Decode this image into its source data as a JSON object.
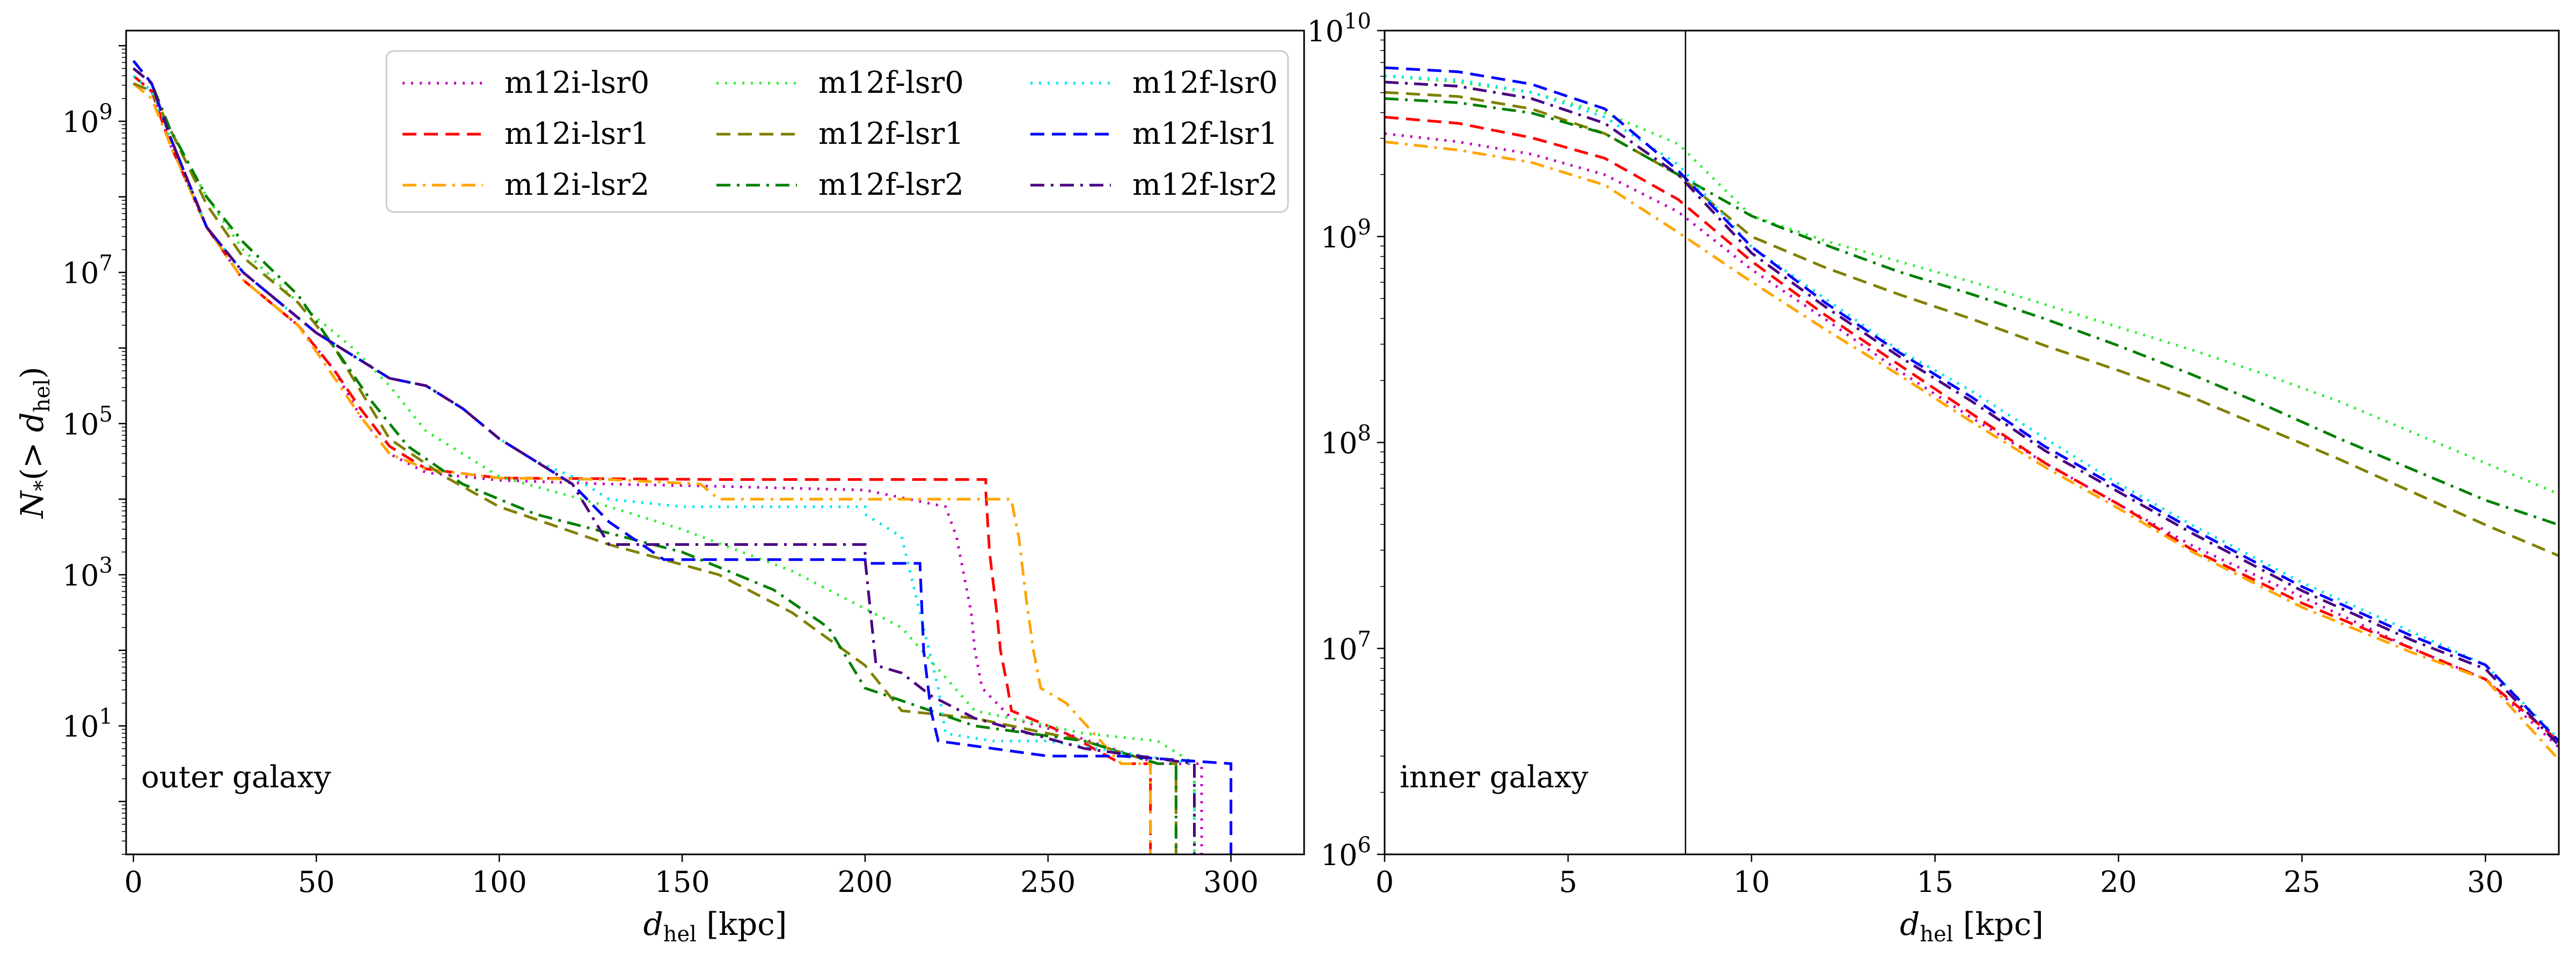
{
  "chart_data": [
    {
      "type": "line",
      "panel": "left",
      "annotation": "outer galaxy",
      "xlabel": "d_hel [kpc]",
      "ylabel": "N_*(> d_hel)",
      "xlim": [
        -2,
        320
      ],
      "ylim_log10": [
        -0.7,
        10.2
      ],
      "xscale": "linear",
      "yscale": "log",
      "xticks": [
        0,
        50,
        100,
        150,
        200,
        250,
        300
      ],
      "yticks_log10": [
        1,
        3,
        5,
        7,
        9
      ],
      "legend_placement": "top-right (3 columns)",
      "series": [
        {
          "name": "m12i-lsr0",
          "color": "#bf00bf",
          "dash": "dot",
          "x": [
            0,
            5,
            10,
            20,
            30,
            45,
            55,
            62,
            70,
            80,
            100,
            130,
            160,
            200,
            222,
            225,
            227,
            229,
            230,
            232,
            240,
            255,
            280,
            292
          ],
          "y": [
            9.5,
            9.4,
            8.7,
            7.6,
            6.9,
            6.3,
            5.7,
            5.1,
            4.6,
            4.35,
            4.25,
            4.2,
            4.17,
            4.12,
            3.9,
            3.5,
            3.0,
            2.5,
            2.0,
            1.5,
            1.1,
            0.9,
            0.5,
            0.5
          ]
        },
        {
          "name": "m12i-lsr1",
          "color": "#ff0000",
          "dash": "dash",
          "x": [
            0,
            5,
            10,
            20,
            30,
            45,
            55,
            62,
            70,
            80,
            100,
            130,
            160,
            233,
            234,
            236,
            237,
            239,
            240,
            255,
            270,
            278
          ],
          "y": [
            9.6,
            9.4,
            8.7,
            7.6,
            6.9,
            6.3,
            5.7,
            5.2,
            4.7,
            4.4,
            4.28,
            4.27,
            4.26,
            4.1,
            3.3,
            2.5,
            2.0,
            1.5,
            1.2,
            0.9,
            0.5,
            0.5
          ]
        },
        {
          "name": "m12i-lsr2",
          "color": "#ffa500",
          "dash": "dashdot",
          "x": [
            0,
            5,
            10,
            20,
            30,
            45,
            55,
            62,
            70,
            80,
            100,
            130,
            155,
            160,
            240,
            242,
            244,
            246,
            248,
            255,
            270,
            278
          ],
          "y": [
            9.5,
            9.3,
            8.7,
            7.6,
            6.9,
            6.3,
            5.6,
            5.1,
            4.6,
            4.4,
            4.28,
            4.26,
            4.2,
            4.0,
            3.98,
            3.5,
            2.7,
            2.0,
            1.5,
            1.3,
            0.5,
            0.5
          ]
        },
        {
          "name": "m12f-lsr0",
          "color": "#33ee33",
          "dash": "dot",
          "x": [
            0,
            5,
            10,
            20,
            30,
            45,
            60,
            70,
            80,
            100,
            130,
            150,
            180,
            210,
            230,
            260,
            280,
            290
          ],
          "y": [
            9.6,
            9.4,
            8.9,
            8.0,
            7.3,
            6.6,
            6.0,
            5.5,
            4.9,
            4.3,
            3.9,
            3.6,
            3.05,
            2.3,
            1.2,
            0.9,
            0.8,
            0.5
          ]
        },
        {
          "name": "m12f-lsr1",
          "color": "#808000",
          "dash": "dash",
          "x": [
            0,
            5,
            10,
            20,
            30,
            45,
            55,
            70,
            85,
            100,
            130,
            160,
            180,
            200,
            210,
            230,
            260,
            280,
            285
          ],
          "y": [
            9.5,
            9.4,
            8.9,
            7.9,
            7.2,
            6.6,
            6.0,
            4.8,
            4.3,
            3.9,
            3.4,
            3.0,
            2.5,
            1.8,
            1.2,
            1.1,
            0.8,
            0.5,
            0.5
          ]
        },
        {
          "name": "m12f-lsr2",
          "color": "#008000",
          "dash": "dashdot",
          "x": [
            0,
            5,
            10,
            20,
            30,
            45,
            55,
            65,
            75,
            90,
            110,
            150,
            175,
            190,
            200,
            230,
            260,
            280,
            285
          ],
          "y": [
            9.7,
            9.5,
            8.9,
            8.0,
            7.4,
            6.7,
            6.0,
            5.3,
            4.7,
            4.2,
            3.8,
            3.3,
            2.8,
            2.3,
            1.5,
            1.0,
            0.8,
            0.5,
            0.5
          ]
        },
        {
          "name": "m12f-lsr0",
          "color": "#00e5ee",
          "dash": "dot",
          "x": [
            0,
            5,
            10,
            20,
            30,
            50,
            70,
            80,
            90,
            100,
            110,
            120,
            130,
            150,
            200,
            210,
            215,
            220,
            222,
            235,
            250,
            290
          ],
          "y": [
            9.6,
            9.4,
            8.8,
            7.6,
            7.0,
            6.2,
            5.6,
            5.5,
            5.2,
            4.8,
            4.5,
            4.3,
            4.0,
            3.9,
            3.8,
            3.5,
            2.5,
            1.5,
            0.9,
            0.8,
            0.8,
            0.5
          ]
        },
        {
          "name": "m12f-lsr1",
          "color": "#0000ff",
          "dash": "dash",
          "x": [
            0,
            5,
            10,
            20,
            30,
            50,
            70,
            80,
            90,
            100,
            110,
            120,
            130,
            145,
            200,
            215,
            216,
            218,
            220,
            235,
            250,
            270,
            300
          ],
          "y": [
            9.8,
            9.5,
            8.8,
            7.6,
            7.0,
            6.2,
            5.6,
            5.5,
            5.2,
            4.8,
            4.5,
            4.2,
            3.7,
            3.2,
            3.15,
            3.15,
            2.0,
            1.2,
            0.8,
            0.7,
            0.6,
            0.6,
            0.5
          ]
        },
        {
          "name": "m12f-lsr2",
          "color": "#4b0082",
          "dash": "dashdot",
          "x": [
            0,
            5,
            10,
            20,
            30,
            50,
            70,
            80,
            90,
            100,
            110,
            120,
            130,
            140,
            200,
            203,
            210,
            218,
            230,
            260,
            290
          ],
          "y": [
            9.7,
            9.5,
            8.8,
            7.6,
            7.0,
            6.2,
            5.6,
            5.5,
            5.2,
            4.8,
            4.5,
            4.2,
            3.4,
            3.4,
            3.2,
            1.8,
            1.7,
            1.4,
            1.1,
            0.7,
            0.5
          ]
        }
      ]
    },
    {
      "type": "line",
      "panel": "right",
      "annotation": "inner galaxy",
      "xlabel": "d_hel [kpc]",
      "xlim": [
        0,
        32
      ],
      "ylim_log10": [
        6,
        10
      ],
      "xscale": "linear",
      "yscale": "log",
      "xticks": [
        0,
        5,
        10,
        15,
        20,
        25,
        30
      ],
      "yticks_log10": [
        6,
        7,
        8,
        9,
        10
      ],
      "vline_x": 8.2,
      "series": [
        {
          "name": "m12i-lsr0",
          "color": "#bf00bf",
          "dash": "dot",
          "x": [
            0,
            2,
            4,
            6,
            8,
            10,
            12,
            14,
            16,
            18,
            20,
            22,
            25,
            28,
            30,
            32
          ],
          "y": [
            9.5,
            9.46,
            9.4,
            9.3,
            9.12,
            8.84,
            8.6,
            8.35,
            8.12,
            7.9,
            7.7,
            7.5,
            7.25,
            7.0,
            6.85,
            6.52
          ]
        },
        {
          "name": "m12i-lsr1",
          "color": "#ff0000",
          "dash": "dash",
          "x": [
            0,
            2,
            4,
            6,
            8,
            10,
            12,
            14,
            16,
            18,
            20,
            22,
            25,
            28,
            30,
            32
          ],
          "y": [
            9.58,
            9.55,
            9.48,
            9.38,
            9.18,
            8.88,
            8.62,
            8.38,
            8.14,
            7.9,
            7.7,
            7.48,
            7.22,
            7.0,
            6.85,
            6.55
          ]
        },
        {
          "name": "m12i-lsr2",
          "color": "#ffa500",
          "dash": "dashdot",
          "x": [
            0,
            2,
            4,
            6,
            8,
            10,
            12,
            14,
            16,
            18,
            20,
            22,
            25,
            28,
            30,
            32
          ],
          "y": [
            9.46,
            9.42,
            9.36,
            9.25,
            9.02,
            8.78,
            8.55,
            8.33,
            8.1,
            7.88,
            7.68,
            7.47,
            7.2,
            6.98,
            6.85,
            6.46
          ]
        },
        {
          "name": "m12f-lsr0",
          "color": "#33ee33",
          "dash": "dot",
          "x": [
            0,
            2,
            4,
            6,
            8,
            10,
            12,
            14,
            16,
            18,
            20,
            22,
            24,
            26,
            28,
            30,
            32
          ],
          "y": [
            9.78,
            9.75,
            9.7,
            9.6,
            9.45,
            9.1,
            8.98,
            8.88,
            8.78,
            8.67,
            8.56,
            8.45,
            8.33,
            8.2,
            8.05,
            7.9,
            7.75
          ]
        },
        {
          "name": "m12f-lsr1",
          "color": "#808000",
          "dash": "dash",
          "x": [
            0,
            2,
            4,
            6,
            8,
            10,
            12,
            14,
            16,
            18,
            20,
            22,
            24,
            26,
            28,
            30,
            32
          ],
          "y": [
            9.7,
            9.68,
            9.62,
            9.5,
            9.3,
            9.0,
            8.85,
            8.72,
            8.6,
            8.47,
            8.35,
            8.22,
            8.07,
            7.92,
            7.76,
            7.6,
            7.45
          ]
        },
        {
          "name": "m12f-lsr2",
          "color": "#008000",
          "dash": "dashdot",
          "x": [
            0,
            2,
            4,
            6,
            8,
            10,
            12,
            14,
            16,
            18,
            20,
            22,
            24,
            26,
            28,
            30,
            32
          ],
          "y": [
            9.67,
            9.65,
            9.6,
            9.5,
            9.3,
            9.1,
            8.96,
            8.83,
            8.72,
            8.6,
            8.47,
            8.33,
            8.18,
            8.02,
            7.87,
            7.72,
            7.6
          ]
        },
        {
          "name": "m12f-lsr0",
          "color": "#00e5ee",
          "dash": "dot",
          "x": [
            0,
            2,
            4,
            6,
            8,
            10,
            12,
            14,
            16,
            18,
            20,
            22,
            25,
            28,
            30,
            32
          ],
          "y": [
            9.78,
            9.76,
            9.7,
            9.58,
            9.35,
            8.95,
            8.7,
            8.45,
            8.25,
            8.02,
            7.8,
            7.6,
            7.32,
            7.08,
            6.92,
            6.56
          ]
        },
        {
          "name": "m12f-lsr1",
          "color": "#0000ff",
          "dash": "dash",
          "x": [
            0,
            2,
            4,
            6,
            8,
            10,
            12,
            14,
            16,
            18,
            20,
            22,
            25,
            28,
            30,
            32
          ],
          "y": [
            9.82,
            9.8,
            9.74,
            9.62,
            9.32,
            8.95,
            8.68,
            8.44,
            8.22,
            7.98,
            7.78,
            7.58,
            7.3,
            7.06,
            6.92,
            6.55
          ]
        },
        {
          "name": "m12f-lsr2",
          "color": "#4b0082",
          "dash": "dashdot",
          "x": [
            0,
            2,
            4,
            6,
            8,
            10,
            12,
            14,
            16,
            18,
            20,
            22,
            25,
            28,
            30,
            32
          ],
          "y": [
            9.75,
            9.73,
            9.67,
            9.55,
            9.3,
            8.92,
            8.66,
            8.42,
            8.2,
            7.96,
            7.76,
            7.56,
            7.28,
            7.04,
            6.9,
            6.53
          ]
        }
      ]
    }
  ]
}
